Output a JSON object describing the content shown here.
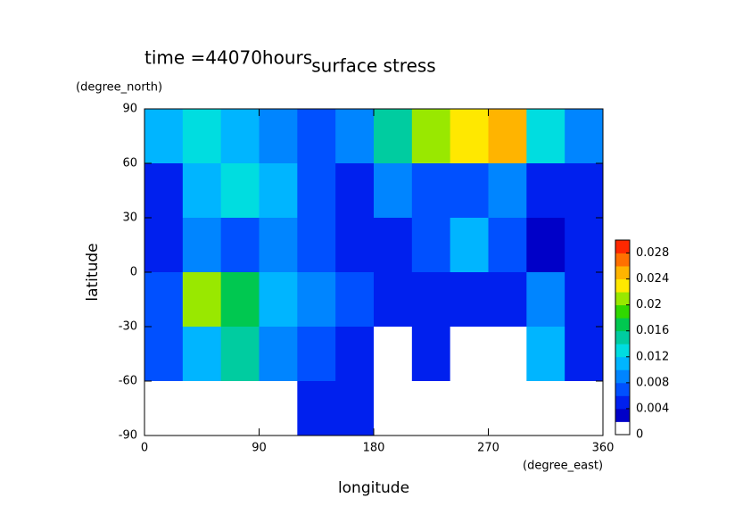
{
  "chart_data": {
    "type": "contour",
    "title": "surface stress",
    "annotation": "time =44070hours",
    "x_label": "longitude",
    "y_label": "latitude",
    "x_unit": "(degree_east)",
    "y_unit": "(degree_north)",
    "x": [
      15,
      45,
      75,
      105,
      135,
      165,
      195,
      225,
      255,
      285,
      315,
      345
    ],
    "y": [
      75,
      45,
      15,
      -15,
      -45,
      -75
    ],
    "z": [
      [
        0.01,
        0.012,
        0.01,
        0.008,
        0.006,
        0.008,
        0.014,
        0.02,
        0.022,
        0.024,
        0.012,
        0.008
      ],
      [
        0.004,
        0.01,
        0.012,
        0.01,
        0.006,
        0.004,
        0.008,
        0.006,
        0.006,
        0.008,
        0.004,
        0.004
      ],
      [
        0.004,
        0.008,
        0.006,
        0.008,
        0.006,
        0.004,
        0.004,
        0.006,
        0.01,
        0.006,
        0.002,
        0.004
      ],
      [
        0.006,
        0.02,
        0.016,
        0.01,
        0.008,
        0.006,
        0.004,
        0.004,
        0.004,
        0.004,
        0.008,
        0.004
      ],
      [
        0.006,
        0.01,
        0.014,
        0.008,
        0.006,
        0.004,
        0,
        0.004,
        0,
        0,
        0.01,
        0.004
      ],
      [
        0,
        0,
        0,
        0,
        0.004,
        0.004,
        0,
        0,
        0,
        0,
        0,
        0
      ]
    ],
    "xlim": [
      0,
      360
    ],
    "xticks": [
      0,
      90,
      180,
      270,
      360
    ],
    "ylim": [
      -90,
      90
    ],
    "yticks": [
      -90,
      -60,
      -30,
      0,
      30,
      60,
      90
    ],
    "clim": [
      0,
      0.03
    ],
    "cticks": [
      0,
      0.004,
      0.008,
      0.012,
      0.016,
      0.02,
      0.024,
      0.028
    ],
    "colors": [
      "#ffffff",
      "#0000c8",
      "#0020ee",
      "#0050ff",
      "#0085ff",
      "#00b5ff",
      "#00dde0",
      "#00cca0",
      "#00c850",
      "#30d800",
      "#99e800",
      "#ffe800",
      "#ffb400",
      "#ff7000",
      "#ff2800"
    ]
  }
}
